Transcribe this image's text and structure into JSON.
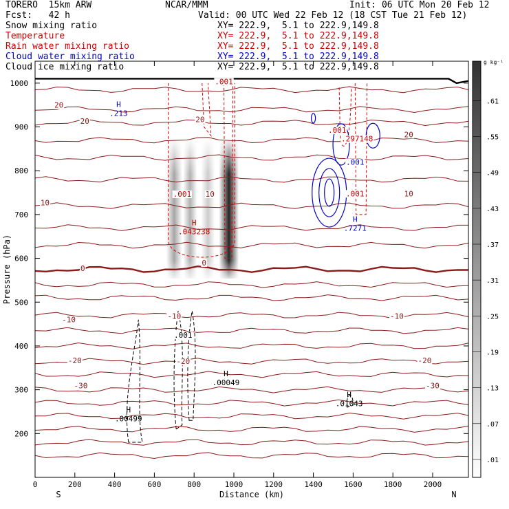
{
  "header": {
    "model": "TORERO  15km ARW",
    "org": "NCAR/MMM",
    "init": "Init: 06 UTC Mon 20 Feb 12",
    "forecast": "Fcst:   42 h",
    "valid": "Valid: 00 UTC Wed 22 Feb 12 (18 CST Tue 21 Feb 12)"
  },
  "fields": [
    {
      "name": "Snow mixing ratio",
      "xy": "XY= 222.9,  5.1 to 222.9,149.8",
      "color": "#000000"
    },
    {
      "name": "Temperature",
      "xy": "XY= 222.9,  5.1 to 222.9,149.8",
      "color": "#cc0000"
    },
    {
      "name": "Rain water mixing ratio",
      "xy": "XY= 222.9,  5.1 to 222.9,149.8",
      "color": "#cc0000"
    },
    {
      "name": "Cloud water mixing ratio",
      "xy": "XY= 222.9,  5.1 to 222.9,149.8",
      "color": "#0000cc"
    },
    {
      "name": "Cloud ice mixing ratio",
      "xy": "XY= 222.9,  5.1 to 222.9,149.8",
      "color": "#000000"
    }
  ],
  "chart_data": {
    "type": "cross-section contour",
    "xlabel": "Distance (km)",
    "ylabel": "Pressure (hPa)",
    "xlim": [
      0,
      2180
    ],
    "ylim": [
      1050,
      100
    ],
    "xticks": [
      0,
      200,
      400,
      600,
      800,
      1000,
      1200,
      1400,
      1600,
      1800,
      2000
    ],
    "yticks": [
      200,
      300,
      400,
      500,
      600,
      700,
      800,
      900,
      1000
    ],
    "left_end": "S",
    "right_end": "N",
    "colorbar": {
      "units": "g kg⁻¹",
      "levels": [
        ".01",
        ".07",
        ".13",
        ".19",
        ".25",
        ".31",
        ".37",
        ".43",
        ".49",
        ".55",
        ".61"
      ]
    },
    "temperature_labels": [
      {
        "text": "-30",
        "x": 230,
        "p": 310
      },
      {
        "text": "-30",
        "x": 2000,
        "p": 310
      },
      {
        "text": "-20",
        "x": 200,
        "p": 367
      },
      {
        "text": "-20",
        "x": 1960,
        "p": 367
      },
      {
        "text": "-20",
        "x": 745,
        "p": 365
      },
      {
        "text": "-10",
        "x": 170,
        "p": 460
      },
      {
        "text": "-10",
        "x": 1820,
        "p": 468
      },
      {
        "text": "-10",
        "x": 700,
        "p": 468
      },
      {
        "text": "0",
        "x": 240,
        "p": 577
      },
      {
        "text": "0",
        "x": 850,
        "p": 590
      },
      {
        "text": "10",
        "x": 50,
        "p": 727
      },
      {
        "text": "10",
        "x": 880,
        "p": 747
      },
      {
        "text": "10",
        "x": 1880,
        "p": 748
      },
      {
        "text": "20",
        "x": 250,
        "p": 913
      },
      {
        "text": "20",
        "x": 120,
        "p": 950
      },
      {
        "text": "20",
        "x": 830,
        "p": 917
      },
      {
        "text": "20",
        "x": 1880,
        "p": 883
      }
    ],
    "extrema_labels": [
      {
        "text": "H",
        "value": ".00499",
        "x": 470,
        "p": 233,
        "color": "#000000"
      },
      {
        "text": "H",
        "value": ".00049",
        "x": 960,
        "p": 315,
        "color": "#000000"
      },
      {
        "text": "H",
        "value": ".01043",
        "x": 1580,
        "p": 267,
        "color": "#000000"
      },
      {
        "text": "H",
        "value": ".043238",
        "x": 800,
        "p": 660,
        "color": "#cc0000"
      },
      {
        "text": "H",
        "value": ".7271",
        "x": 1610,
        "p": 668,
        "color": "#0000cc"
      },
      {
        "text": "H",
        "value": ".213",
        "x": 420,
        "p": 930,
        "color": "#0000cc"
      }
    ],
    "contour_value_labels": [
      {
        "text": ".001",
        "x": 745,
        "p": 425,
        "color": "#000000"
      },
      {
        "text": ".001",
        "x": 740,
        "p": 747,
        "color": "#cc0000"
      },
      {
        "text": ".001",
        "x": 950,
        "p": 1004,
        "color": "#cc0000"
      },
      {
        "text": ".001",
        "x": 1520,
        "p": 893,
        "color": "#cc0000"
      },
      {
        "text": ".001",
        "x": 1610,
        "p": 820,
        "color": "#0000cc"
      },
      {
        "text": ".001",
        "x": 1610,
        "p": 748,
        "color": "#cc0000"
      },
      {
        "text": ".297148",
        "x": 1620,
        "p": 873,
        "color": "#cc0000"
      }
    ],
    "annotations": [
      "H",
      "H",
      "H",
      "H",
      "H",
      "H"
    ]
  }
}
